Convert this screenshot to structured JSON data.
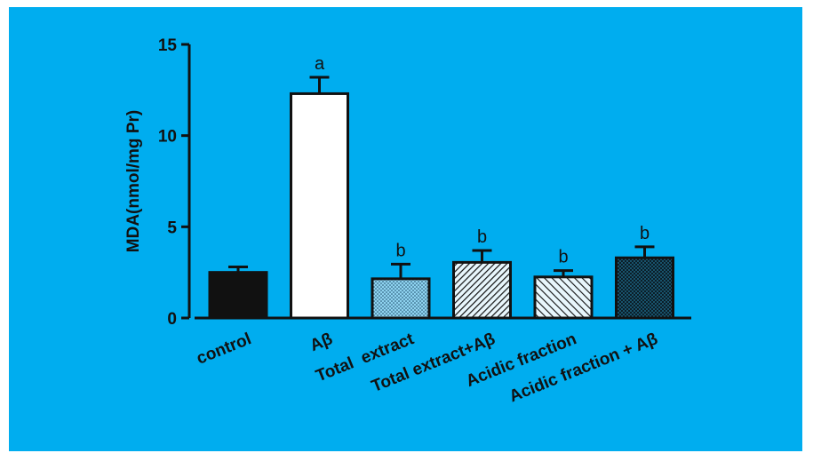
{
  "chart_data": {
    "type": "bar",
    "title": "",
    "xlabel": "",
    "ylabel": "MDA(nmol/mg Pr)",
    "ylim": [
      0,
      15
    ],
    "yticks": [
      0,
      5,
      10,
      15
    ],
    "grid": false,
    "legend": "none",
    "categories": [
      "control",
      "Aβ",
      "Total  extract",
      "Total extract+Aβ",
      "Acidic fraction",
      "Acidic fraction + Aβ"
    ],
    "values": [
      2.5,
      12.3,
      2.15,
      3.05,
      2.25,
      3.3
    ],
    "errors": [
      0.3,
      0.9,
      0.8,
      0.65,
      0.35,
      0.6
    ],
    "significance": [
      "",
      "a",
      "b",
      "b",
      "b",
      "b"
    ],
    "fills": [
      "solid",
      "open",
      "dots",
      "diagonal-dense",
      "diagonal",
      "crosshatch"
    ]
  },
  "colors": {
    "background": "#00adef",
    "bar_stroke": "#111111",
    "solid_fill": "#111111",
    "open_fill": "#ffffff"
  }
}
